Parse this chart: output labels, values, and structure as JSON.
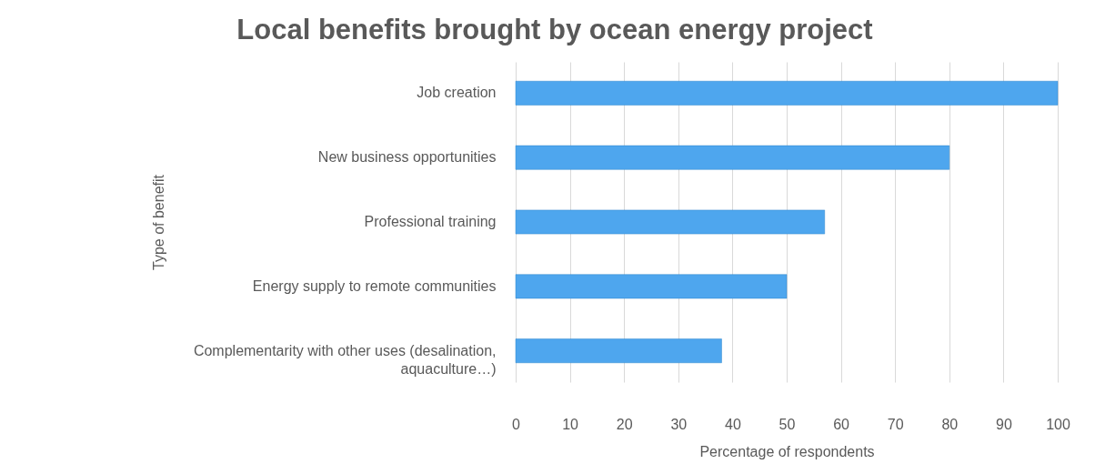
{
  "chart_data": {
    "type": "bar",
    "orientation": "horizontal",
    "title": "Local benefits brought by ocean energy project",
    "xlabel": "Percentage of respondents",
    "ylabel": "Type of benefit",
    "categories": [
      "Job creation",
      "New business opportunities",
      "Professional training",
      "Energy supply to remote communities",
      "Complementarity with other uses (desalination, aquaculture…)"
    ],
    "values": [
      100,
      80,
      57,
      50,
      38
    ],
    "color": "#4ea6ee",
    "xlim": [
      0,
      100
    ],
    "xticks": [
      0,
      10,
      20,
      30,
      40,
      50,
      60,
      70,
      80,
      90,
      100
    ],
    "grid": "x"
  }
}
